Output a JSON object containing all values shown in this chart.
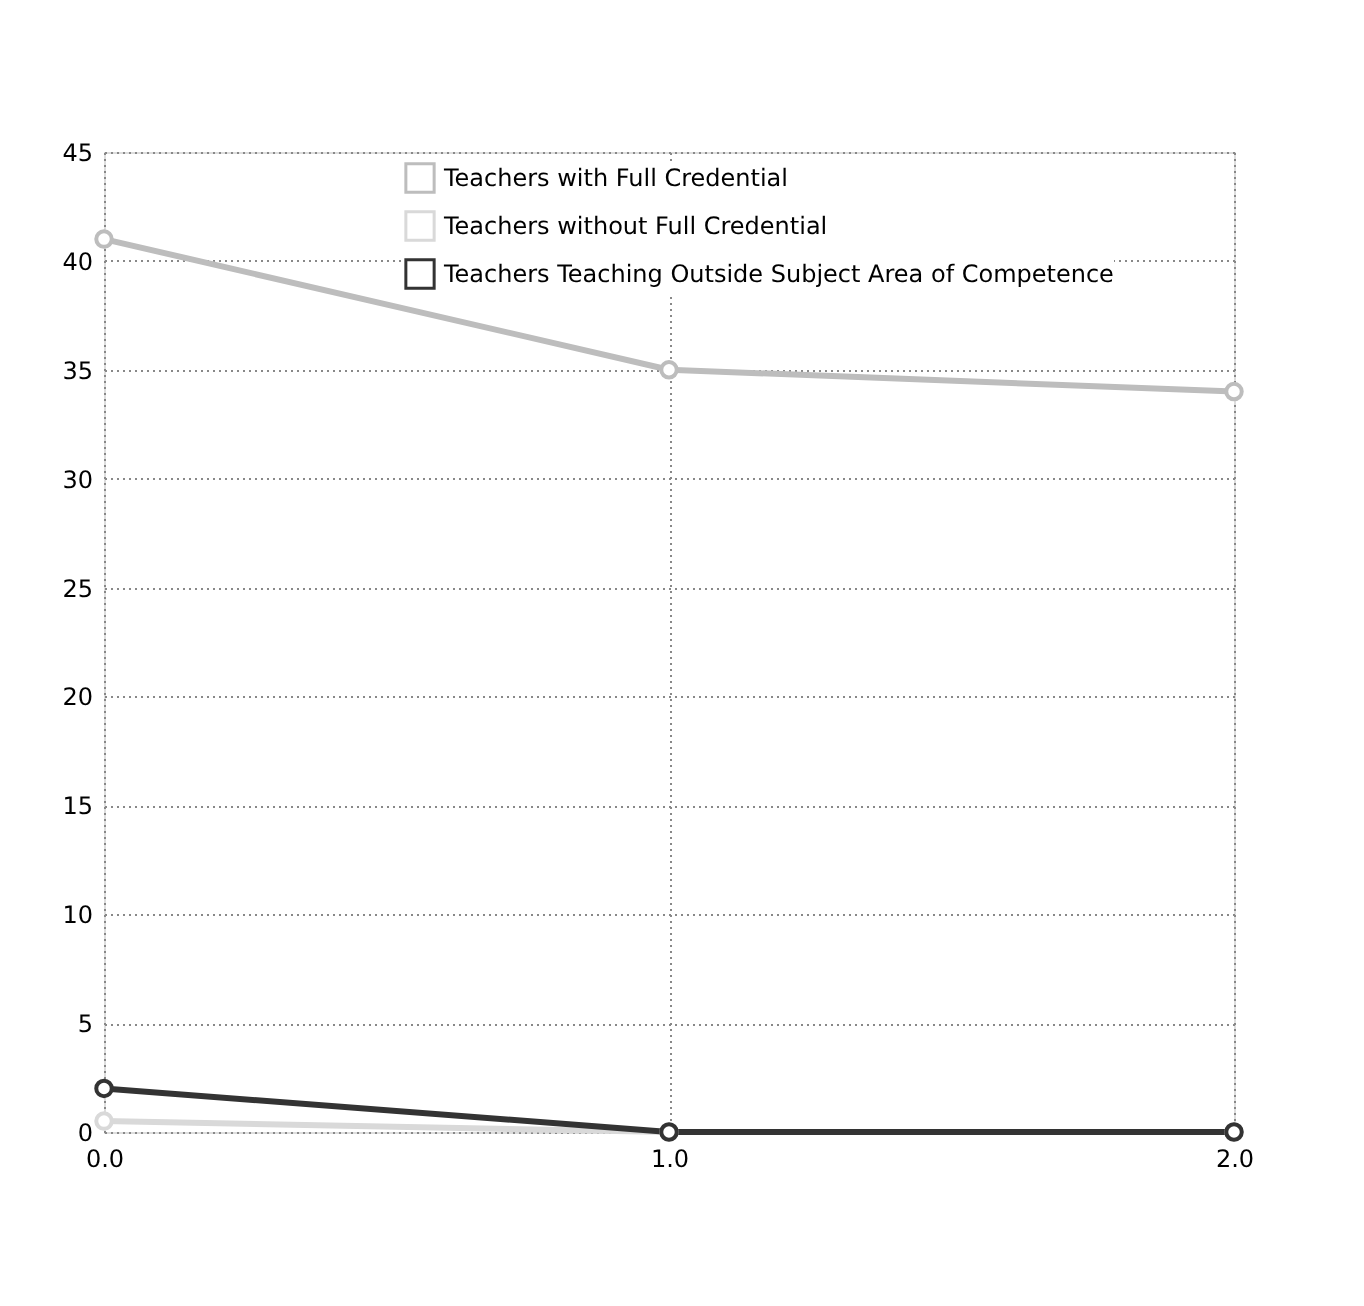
{
  "chart_data": {
    "type": "line",
    "x": [
      0,
      1,
      2
    ],
    "series": [
      {
        "name": "Teachers with Full Credential",
        "color": "#bdbdbd",
        "values": [
          41,
          35,
          34
        ]
      },
      {
        "name": "Teachers without Full Credential",
        "color": "#d9d9d9",
        "values": [
          0.5,
          0,
          0
        ]
      },
      {
        "name": "Teachers Teaching Outside Subject Area of Competence",
        "color": "#333333",
        "values": [
          2,
          0,
          0
        ]
      }
    ],
    "xlim": [
      0,
      2
    ],
    "xticks": [
      {
        "value": 0,
        "label": "0.0"
      },
      {
        "value": 1,
        "label": "1.0"
      },
      {
        "value": 2,
        "label": "2.0"
      }
    ],
    "ylim": [
      0,
      45
    ],
    "yticks": [
      0,
      5,
      10,
      15,
      20,
      25,
      30,
      35,
      40,
      45
    ],
    "grid": true,
    "legend": "top",
    "marker": "circle",
    "line_style": "solid"
  }
}
